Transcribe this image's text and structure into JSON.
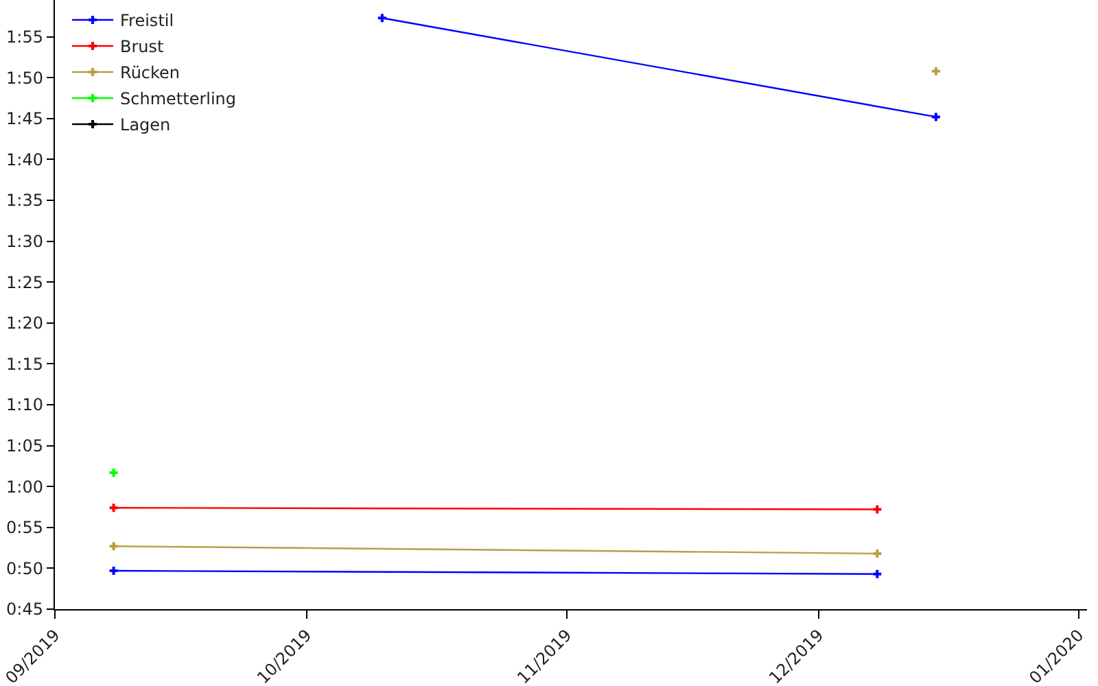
{
  "chart_data": {
    "type": "line",
    "grid": false,
    "legend": "top left",
    "marker": "cross",
    "line_style": "solid",
    "xlim": [
      "2019-09-01",
      "2020-01-02"
    ],
    "xticks": [
      {
        "value": "2019-09-01",
        "label": "09/2019"
      },
      {
        "value": "2019-10-01",
        "label": "10/2019"
      },
      {
        "value": "2019-11-01",
        "label": "11/2019"
      },
      {
        "value": "2019-12-01",
        "label": "12/2019"
      },
      {
        "value": "2020-01-01",
        "label": "01/2020"
      }
    ],
    "ylim": [
      45,
      119.5
    ],
    "yticks": [
      {
        "value": 45,
        "label": "0:45"
      },
      {
        "value": 50,
        "label": "0:50"
      },
      {
        "value": 55,
        "label": "0:55"
      },
      {
        "value": 60,
        "label": "1:00"
      },
      {
        "value": 65,
        "label": "1:05"
      },
      {
        "value": 70,
        "label": "1:10"
      },
      {
        "value": 75,
        "label": "1:15"
      },
      {
        "value": 80,
        "label": "1:20"
      },
      {
        "value": 85,
        "label": "1:25"
      },
      {
        "value": 90,
        "label": "1:30"
      },
      {
        "value": 95,
        "label": "1:35"
      },
      {
        "value": 100,
        "label": "1:40"
      },
      {
        "value": 105,
        "label": "1:45"
      },
      {
        "value": 110,
        "label": "1:50"
      },
      {
        "value": 115,
        "label": "1:55"
      }
    ],
    "series": [
      {
        "name": "Freistil",
        "color": "#0000ff",
        "x": [
          "2019-09-08",
          "2019-12-08"
        ],
        "values": [
          49.7,
          49.3
        ]
      },
      {
        "color": "#0000ff",
        "x": [
          "2019-10-10",
          "2019-12-15"
        ],
        "values": [
          117.3,
          105.2
        ]
      },
      {
        "name": "Brust",
        "color": "#ff0000",
        "x": [
          "2019-09-08",
          "2019-12-08"
        ],
        "values": [
          57.4,
          57.2
        ]
      },
      {
        "name": "Rücken",
        "color": "#b8a040",
        "x": [
          "2019-09-08",
          "2019-12-08"
        ],
        "values": [
          52.7,
          51.8
        ]
      },
      {
        "color": "#b8a040",
        "x": [
          "2019-12-15"
        ],
        "values": [
          110.8
        ]
      },
      {
        "name": "Schmetterling",
        "color": "#00ff00",
        "x": [
          "2019-09-08"
        ],
        "values": [
          61.7
        ]
      },
      {
        "name": "Lagen",
        "color": "#000000"
      }
    ]
  }
}
